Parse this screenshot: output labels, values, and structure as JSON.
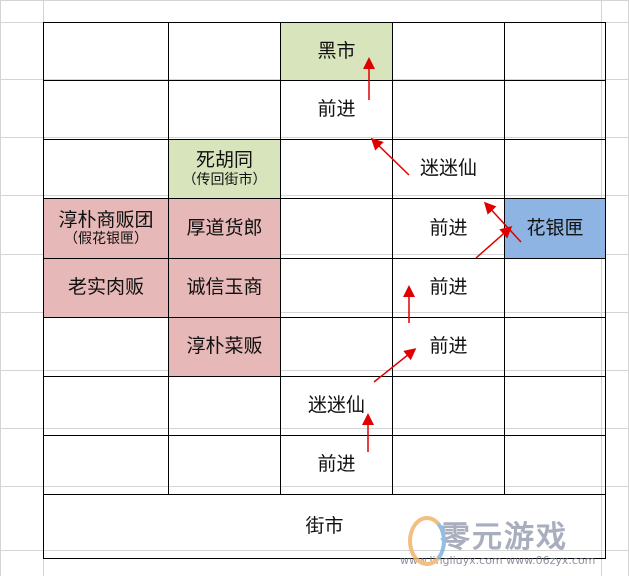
{
  "colors": {
    "green": "#d8e4bc",
    "pink": "#e6b8b7",
    "blue": "#8db4e2",
    "arrow": "#e00000"
  },
  "grid": [
    [
      {
        "t": ""
      },
      {
        "t": ""
      },
      {
        "t": "黑市",
        "c": "green"
      },
      {
        "t": ""
      },
      {
        "t": ""
      }
    ],
    [
      {
        "t": ""
      },
      {
        "t": ""
      },
      {
        "t": "前进"
      },
      {
        "t": ""
      },
      {
        "t": ""
      }
    ],
    [
      {
        "t": ""
      },
      {
        "t": "死胡同",
        "s": "（传回街市）",
        "c": "green"
      },
      {
        "t": ""
      },
      {
        "t": "迷迷仙"
      },
      {
        "t": ""
      }
    ],
    [
      {
        "t": "淳朴商贩团",
        "s": "（假花银匣）",
        "c": "pink"
      },
      {
        "t": "厚道货郎",
        "c": "pink"
      },
      {
        "t": ""
      },
      {
        "t": "前进"
      },
      {
        "t": "花银匣",
        "c": "blue"
      }
    ],
    [
      {
        "t": "老实肉贩",
        "c": "pink"
      },
      {
        "t": "诚信玉商",
        "c": "pink"
      },
      {
        "t": ""
      },
      {
        "t": "前进"
      },
      {
        "t": ""
      }
    ],
    [
      {
        "t": ""
      },
      {
        "t": "淳朴菜贩",
        "c": "pink"
      },
      {
        "t": ""
      },
      {
        "t": "前进"
      },
      {
        "t": ""
      }
    ],
    [
      {
        "t": ""
      },
      {
        "t": ""
      },
      {
        "t": "迷迷仙"
      },
      {
        "t": ""
      },
      {
        "t": ""
      }
    ],
    [
      {
        "t": ""
      },
      {
        "t": ""
      },
      {
        "t": "前进"
      },
      {
        "t": ""
      },
      {
        "t": ""
      }
    ]
  ],
  "bottom": "街市",
  "watermark": {
    "name": "零元游戏",
    "urls": "www.lingliuyx.com   www.06zyx.com"
  }
}
